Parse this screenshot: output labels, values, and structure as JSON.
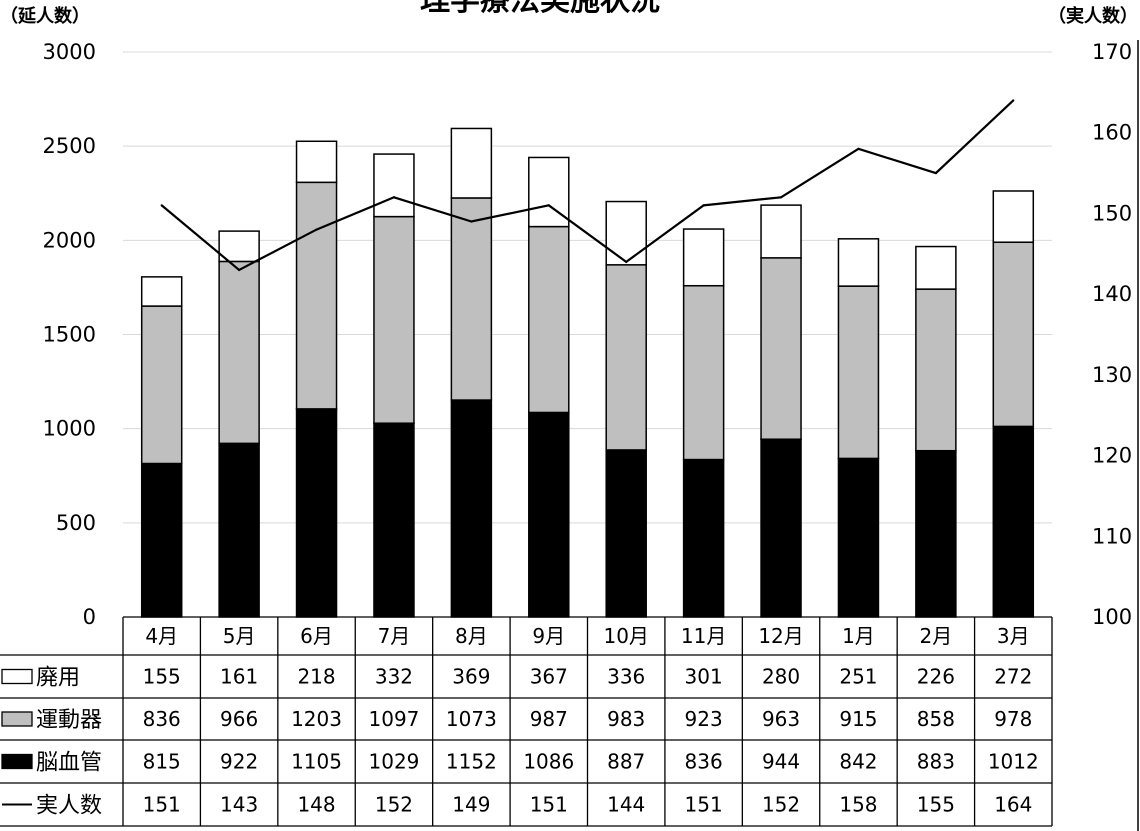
{
  "chart_data": {
    "type": "bar",
    "title": "理学療法実施状況",
    "ylabel_left": "（延人数）",
    "ylabel_right": "（実人数）",
    "ylim": [
      0,
      3000
    ],
    "ylim_right": [
      100,
      170
    ],
    "yticks": [
      0,
      500,
      1000,
      1500,
      2000,
      2500,
      3000
    ],
    "yticks_right": [
      100,
      110,
      120,
      130,
      140,
      150,
      160,
      170
    ],
    "categories": [
      "4月",
      "5月",
      "6月",
      "7月",
      "8月",
      "9月",
      "10月",
      "11月",
      "12月",
      "1月",
      "2月",
      "3月"
    ],
    "grid": true,
    "stacked": true,
    "series": [
      {
        "name": "脳血管",
        "kind": "bar",
        "axis": "left",
        "color": "#000000",
        "values": [
          815,
          922,
          1105,
          1029,
          1152,
          1086,
          887,
          836,
          944,
          842,
          883,
          1012
        ]
      },
      {
        "name": "運動器",
        "kind": "bar",
        "axis": "left",
        "color": "#bfbfbf",
        "values": [
          836,
          966,
          1203,
          1097,
          1073,
          987,
          983,
          923,
          963,
          915,
          858,
          978
        ]
      },
      {
        "name": "廃用",
        "kind": "bar",
        "axis": "left",
        "color": "#ffffff",
        "values": [
          155,
          161,
          218,
          332,
          369,
          367,
          336,
          301,
          280,
          251,
          226,
          272
        ]
      },
      {
        "name": "実人数",
        "kind": "line",
        "axis": "right",
        "color": "#000000",
        "values": [
          151,
          143,
          148,
          152,
          149,
          151,
          144,
          151,
          152,
          158,
          155,
          164
        ]
      }
    ],
    "table_order": [
      "廃用",
      "運動器",
      "脳血管",
      "実人数"
    ]
  }
}
